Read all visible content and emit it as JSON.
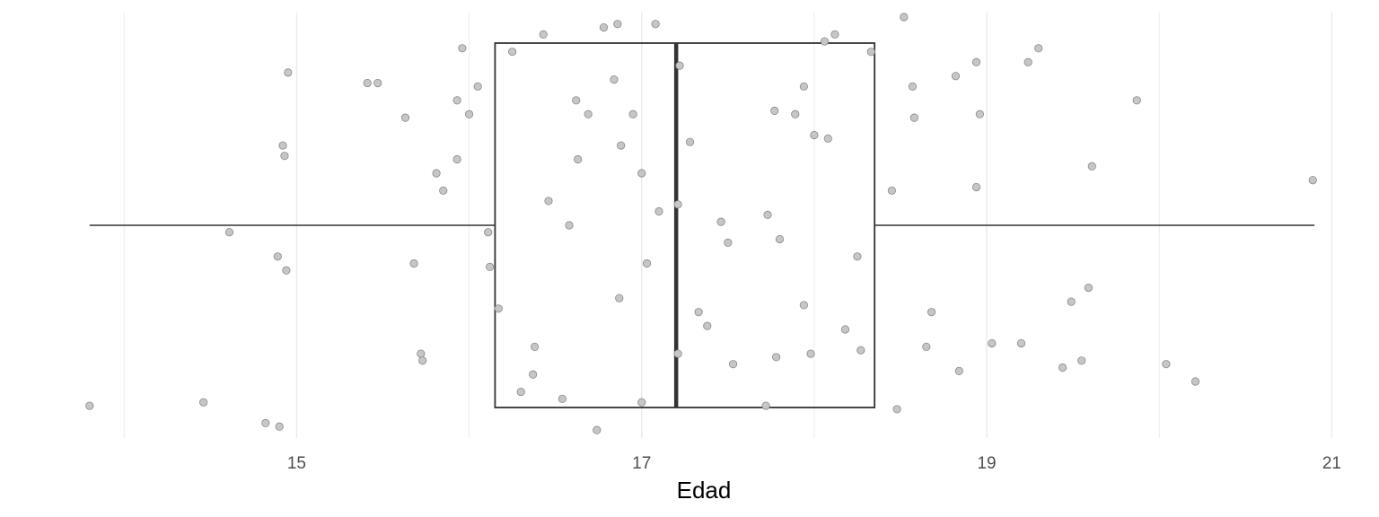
{
  "chart_data": {
    "type": "boxplot",
    "orientation": "horizontal",
    "title": "",
    "xlabel": "Edad",
    "ylabel": "",
    "xlim": [
      13.65,
      21.05
    ],
    "x_ticks": [
      15,
      17,
      19,
      21
    ],
    "x_tick_labels": [
      "15",
      "17",
      "19",
      "21"
    ],
    "minor_gridlines": [
      14,
      16,
      18,
      20
    ],
    "grid": true,
    "legend": "none",
    "box": {
      "whisker_low": 13.8,
      "q1": 16.15,
      "median": 17.2,
      "q3": 18.35,
      "whisker_high": 20.9
    },
    "jitter_range": [
      -0.6,
      0.6
    ],
    "points": [
      {
        "x": 13.8,
        "y": -0.52
      },
      {
        "x": 14.46,
        "y": -0.51
      },
      {
        "x": 14.61,
        "y": -0.02
      },
      {
        "x": 14.82,
        "y": -0.57
      },
      {
        "x": 14.89,
        "y": -0.09
      },
      {
        "x": 14.9,
        "y": -0.58
      },
      {
        "x": 14.92,
        "y": 0.23
      },
      {
        "x": 14.93,
        "y": 0.2
      },
      {
        "x": 14.94,
        "y": -0.13
      },
      {
        "x": 14.95,
        "y": 0.44
      },
      {
        "x": 15.41,
        "y": 0.41
      },
      {
        "x": 15.47,
        "y": 0.41
      },
      {
        "x": 15.63,
        "y": 0.31
      },
      {
        "x": 15.68,
        "y": -0.11
      },
      {
        "x": 15.72,
        "y": -0.37
      },
      {
        "x": 15.73,
        "y": -0.39
      },
      {
        "x": 15.81,
        "y": 0.15
      },
      {
        "x": 15.85,
        "y": 0.1
      },
      {
        "x": 15.93,
        "y": 0.36
      },
      {
        "x": 15.93,
        "y": 0.19
      },
      {
        "x": 15.96,
        "y": 0.51
      },
      {
        "x": 16.0,
        "y": 0.32
      },
      {
        "x": 16.05,
        "y": 0.4
      },
      {
        "x": 16.11,
        "y": -0.02
      },
      {
        "x": 16.12,
        "y": -0.12
      },
      {
        "x": 16.17,
        "y": -0.24
      },
      {
        "x": 16.25,
        "y": 0.5
      },
      {
        "x": 16.3,
        "y": -0.48
      },
      {
        "x": 16.37,
        "y": -0.43
      },
      {
        "x": 16.38,
        "y": -0.35
      },
      {
        "x": 16.43,
        "y": 0.55
      },
      {
        "x": 16.46,
        "y": 0.07
      },
      {
        "x": 16.54,
        "y": -0.5
      },
      {
        "x": 16.58,
        "y": 0.0
      },
      {
        "x": 16.62,
        "y": 0.36
      },
      {
        "x": 16.63,
        "y": 0.19
      },
      {
        "x": 16.69,
        "y": 0.32
      },
      {
        "x": 16.74,
        "y": -0.59
      },
      {
        "x": 16.78,
        "y": 0.57
      },
      {
        "x": 16.84,
        "y": 0.42
      },
      {
        "x": 16.86,
        "y": 0.58
      },
      {
        "x": 16.87,
        "y": -0.21
      },
      {
        "x": 16.88,
        "y": 0.23
      },
      {
        "x": 16.95,
        "y": 0.32
      },
      {
        "x": 17.0,
        "y": 0.15
      },
      {
        "x": 17.0,
        "y": -0.51
      },
      {
        "x": 17.03,
        "y": -0.11
      },
      {
        "x": 17.08,
        "y": 0.58
      },
      {
        "x": 17.1,
        "y": 0.04
      },
      {
        "x": 17.21,
        "y": 0.06
      },
      {
        "x": 17.21,
        "y": -0.37
      },
      {
        "x": 17.22,
        "y": 0.46
      },
      {
        "x": 17.28,
        "y": 0.24
      },
      {
        "x": 17.33,
        "y": -0.25
      },
      {
        "x": 17.38,
        "y": -0.29
      },
      {
        "x": 17.46,
        "y": 0.01
      },
      {
        "x": 17.5,
        "y": -0.05
      },
      {
        "x": 17.53,
        "y": -0.4
      },
      {
        "x": 17.73,
        "y": 0.03
      },
      {
        "x": 17.72,
        "y": -0.52
      },
      {
        "x": 17.77,
        "y": 0.33
      },
      {
        "x": 17.78,
        "y": -0.38
      },
      {
        "x": 17.8,
        "y": -0.04
      },
      {
        "x": 17.89,
        "y": 0.32
      },
      {
        "x": 17.94,
        "y": -0.23
      },
      {
        "x": 17.94,
        "y": 0.4
      },
      {
        "x": 17.98,
        "y": -0.37
      },
      {
        "x": 18.0,
        "y": 0.26
      },
      {
        "x": 18.06,
        "y": 0.53
      },
      {
        "x": 18.08,
        "y": 0.25
      },
      {
        "x": 18.12,
        "y": 0.55
      },
      {
        "x": 18.18,
        "y": -0.3
      },
      {
        "x": 18.25,
        "y": -0.09
      },
      {
        "x": 18.27,
        "y": -0.36
      },
      {
        "x": 18.33,
        "y": 0.5
      },
      {
        "x": 18.45,
        "y": 0.1
      },
      {
        "x": 18.48,
        "y": -0.53
      },
      {
        "x": 18.52,
        "y": 0.6
      },
      {
        "x": 18.57,
        "y": 0.4
      },
      {
        "x": 18.58,
        "y": 0.31
      },
      {
        "x": 18.65,
        "y": -0.35
      },
      {
        "x": 18.68,
        "y": -0.25
      },
      {
        "x": 18.82,
        "y": 0.43
      },
      {
        "x": 18.84,
        "y": -0.42
      },
      {
        "x": 18.94,
        "y": 0.47
      },
      {
        "x": 18.94,
        "y": 0.11
      },
      {
        "x": 18.96,
        "y": 0.32
      },
      {
        "x": 19.03,
        "y": -0.34
      },
      {
        "x": 19.2,
        "y": -0.34
      },
      {
        "x": 19.24,
        "y": 0.47
      },
      {
        "x": 19.3,
        "y": 0.51
      },
      {
        "x": 19.44,
        "y": -0.41
      },
      {
        "x": 19.49,
        "y": -0.22
      },
      {
        "x": 19.55,
        "y": -0.39
      },
      {
        "x": 19.59,
        "y": -0.18
      },
      {
        "x": 19.61,
        "y": 0.17
      },
      {
        "x": 19.87,
        "y": 0.36
      },
      {
        "x": 20.04,
        "y": -0.4
      },
      {
        "x": 20.21,
        "y": -0.45
      },
      {
        "x": 20.89,
        "y": 0.13
      }
    ],
    "colors": {
      "point_fill": "#c6c6c6",
      "point_stroke": "#8a8a8a",
      "box_stroke": "#333333",
      "median_stroke": "#333333",
      "gridline": "#ebebeb"
    }
  }
}
